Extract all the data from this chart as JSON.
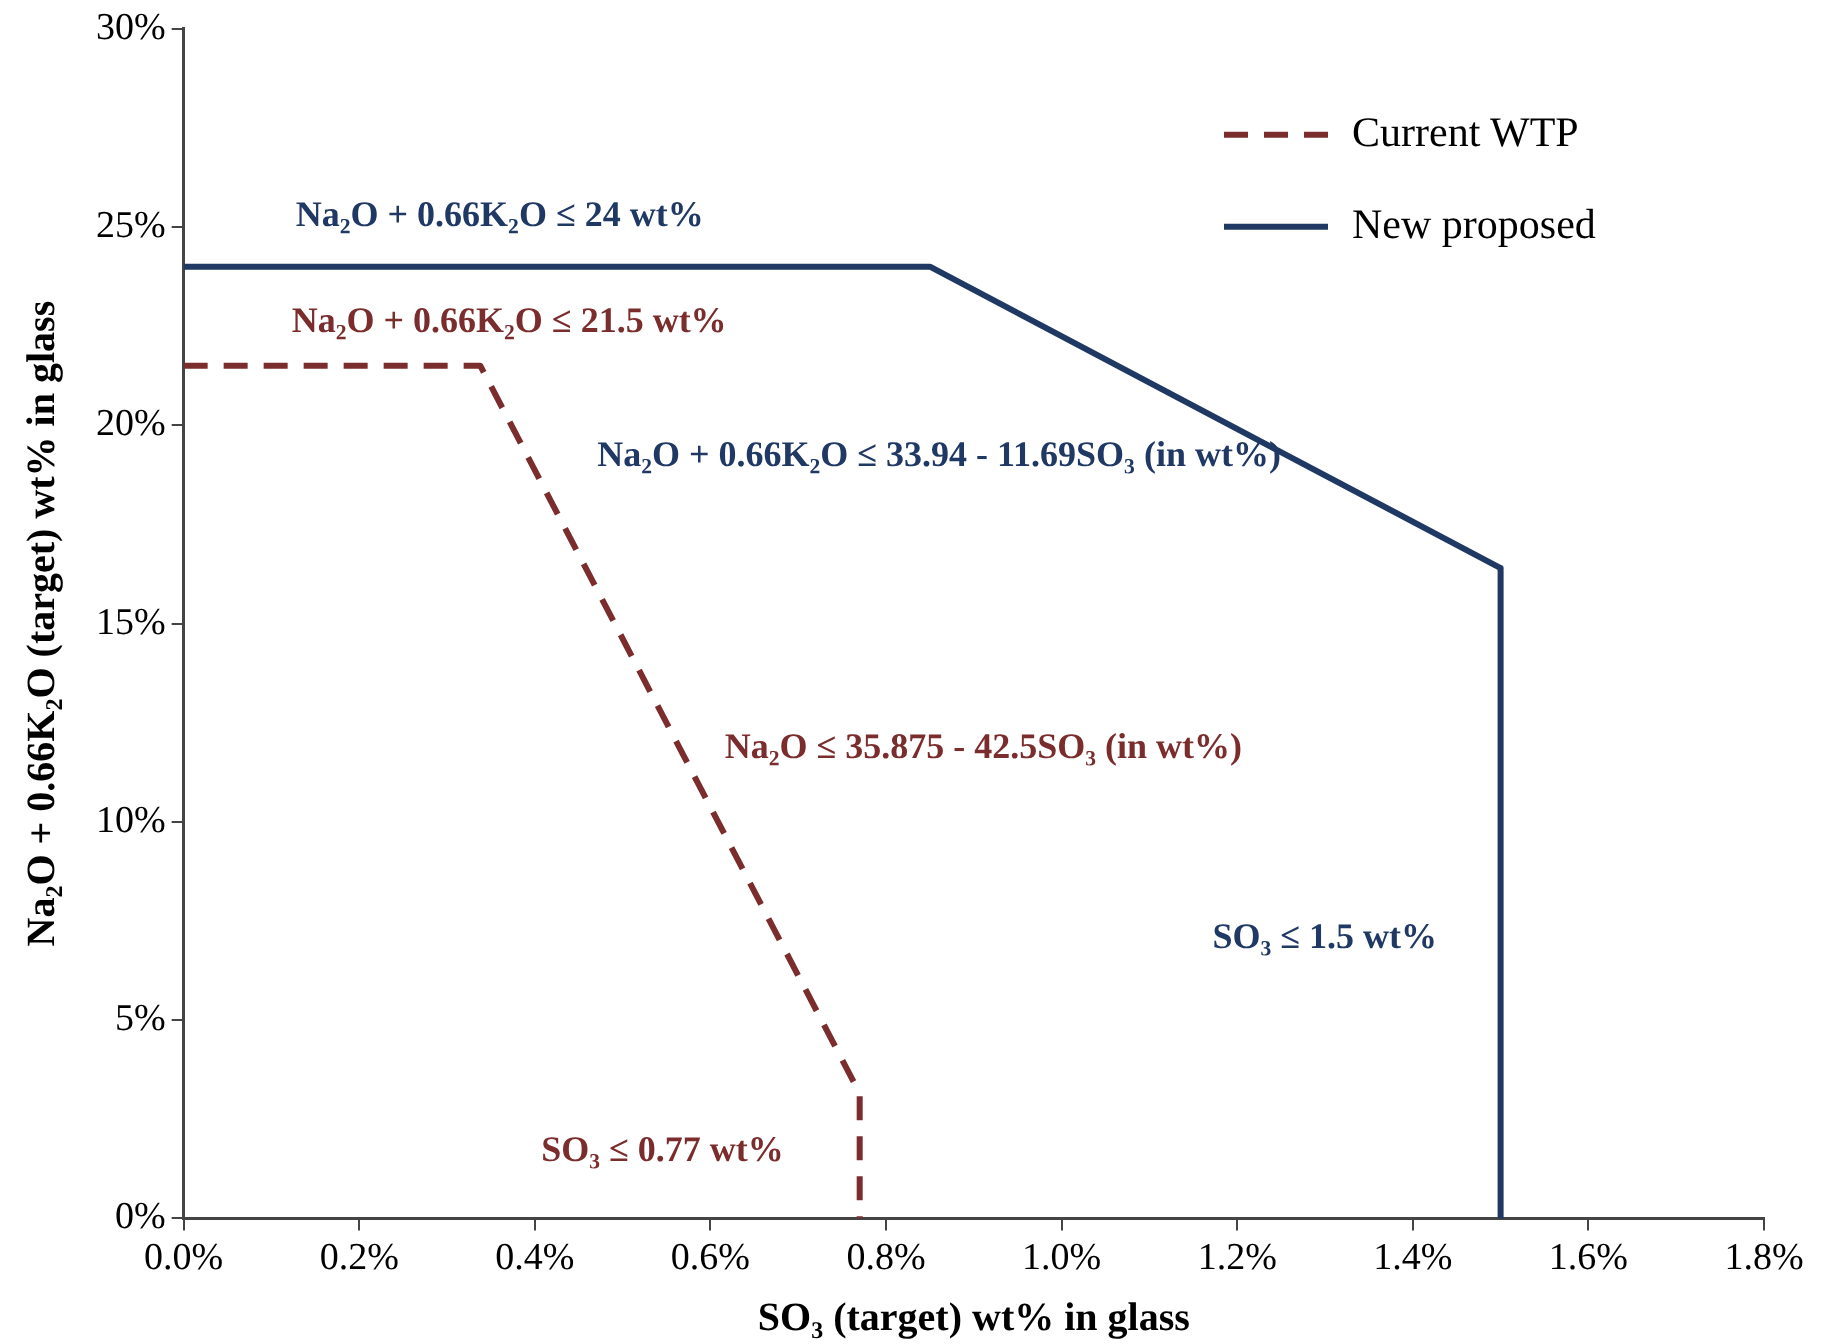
{
  "chart_data": {
    "type": "line",
    "xlabel": "SO₃ (target) wt% in glass",
    "ylabel": "Na₂O + 0.66K₂O (target) wt% in glass",
    "series": [
      {
        "name": "Current WTP",
        "color": "#7b2c2c",
        "line_style": "dashed",
        "x": [
          0,
          0.338,
          0.77,
          0.77
        ],
        "values": [
          21.5,
          21.5,
          3.15,
          0
        ]
      },
      {
        "name": "New proposed",
        "color": "#1f3864",
        "line_style": "solid",
        "x": [
          0,
          0.85,
          1.5,
          1.5
        ],
        "values": [
          24,
          24,
          16.4,
          0
        ]
      }
    ],
    "xlim": [
      0,
      1.8
    ],
    "xticks": [
      {
        "value": 0,
        "label": "0.0%"
      },
      {
        "value": 0.2,
        "label": "0.2%"
      },
      {
        "value": 0.4,
        "label": "0.4%"
      },
      {
        "value": 0.6,
        "label": "0.6%"
      },
      {
        "value": 0.8,
        "label": "0.8%"
      },
      {
        "value": 1,
        "label": "1.0%"
      },
      {
        "value": 1.2,
        "label": "1.2%"
      },
      {
        "value": 1.4,
        "label": "1.4%"
      },
      {
        "value": 1.6,
        "label": "1.6%"
      },
      {
        "value": 1.8,
        "label": "1.8%"
      }
    ],
    "ylim": [
      0,
      30
    ],
    "yticks": [
      {
        "value": 0,
        "label": "0%"
      },
      {
        "value": 5,
        "label": "5%"
      },
      {
        "value": 10,
        "label": "10%"
      },
      {
        "value": 15,
        "label": "15%"
      },
      {
        "value": 20,
        "label": "20%"
      },
      {
        "value": 25,
        "label": "25%"
      },
      {
        "value": 30,
        "label": "30%"
      }
    ],
    "annotations": [
      "Na₂O + 0.66K₂O ≤ 24 wt%",
      "Na₂O + 0.66K₂O ≤ 21.5 wt%",
      "Na₂O + 0.66K₂O ≤ 33.94 - 11.69SO₃ (in wt%)",
      "Na₂O ≤ 35.875 - 42.5SO₃ (in wt%)",
      "SO₃ ≤ 1.5 wt%",
      "SO₃ ≤ 0.77 wt%"
    ],
    "grid": false,
    "legend": "top right",
    "marker": "none"
  }
}
